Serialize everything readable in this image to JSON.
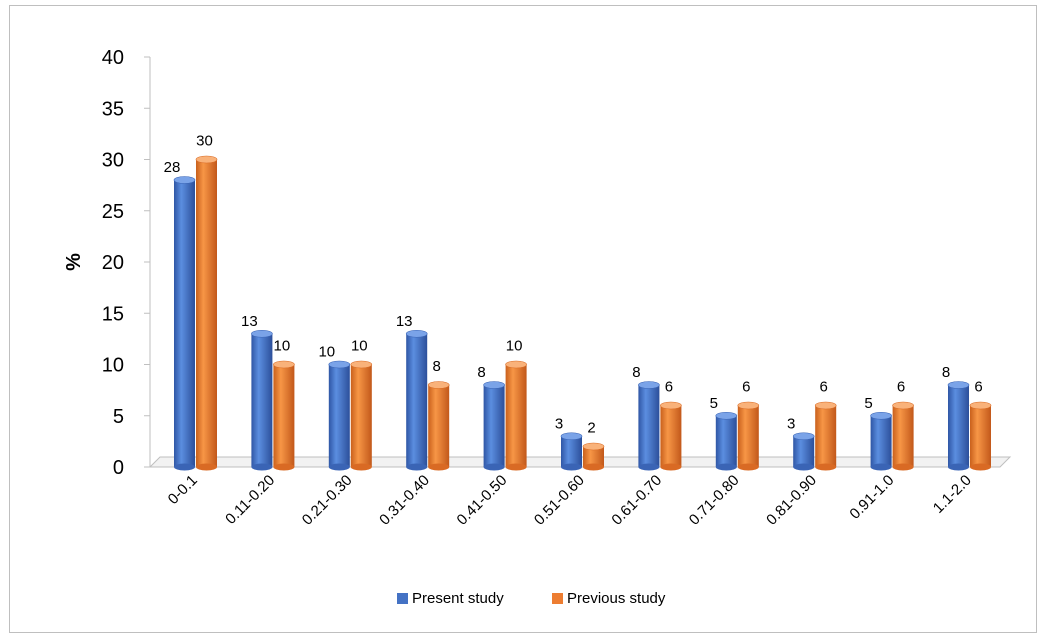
{
  "chart_data": {
    "type": "bar",
    "title": "",
    "xlabel": "",
    "ylabel": "%",
    "ylim": [
      0,
      40
    ],
    "yticks": [
      0,
      5,
      10,
      15,
      20,
      25,
      30,
      35,
      40
    ],
    "grid": false,
    "legend_position": "bottom",
    "categories": [
      "0-0.1",
      "0.11-0.20",
      "0.21-0.30",
      "0.31-0.40",
      "0.41-0.50",
      "0.51-0.60",
      "0.61-0.70",
      "0.71-0.80",
      "0.81-0.90",
      "0.91-1.0",
      "1.1-2.0"
    ],
    "series": [
      {
        "name": "Present study",
        "color": "#4472c4",
        "values": [
          28,
          13,
          10,
          13,
          8,
          3,
          8,
          5,
          3,
          5,
          8
        ]
      },
      {
        "name": "Previous study",
        "color": "#ed7d31",
        "values": [
          30,
          10,
          10,
          8,
          10,
          2,
          6,
          6,
          6,
          6,
          6
        ]
      }
    ]
  }
}
